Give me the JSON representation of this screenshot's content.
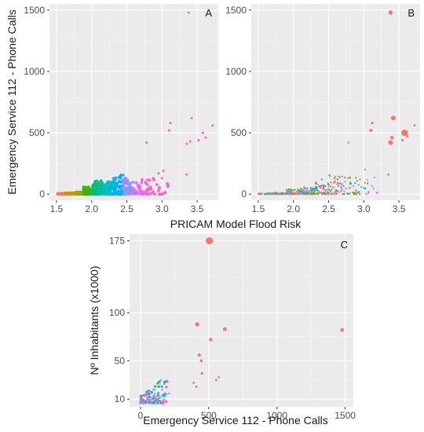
{
  "chart_data": [
    {
      "id": "A",
      "type": "scatter",
      "panel_label": "A",
      "xlabel": "PRICAM Model Flood Risk",
      "ylabel": "Emergency Service 112 - Phone Calls",
      "xlim": [
        1.4,
        3.8
      ],
      "ylim": [
        -50,
        1550
      ],
      "xticks": [
        1.5,
        2.0,
        2.5,
        3.0,
        3.5
      ],
      "xtick_labels": [
        "1.5",
        "2.0",
        "2.5",
        "3.0",
        "3.5"
      ],
      "yticks": [
        0,
        500,
        1000,
        1500
      ],
      "ytick_labels": [
        "0",
        "500",
        "1000",
        "1500"
      ],
      "grid": true,
      "colors": [
        "#F8766D",
        "#D89000",
        "#A3A500",
        "#39B600",
        "#00BF7D",
        "#00BFC4",
        "#00B0F6",
        "#9590FF",
        "#E76BF3",
        "#FF62BC"
      ],
      "bands": [
        {
          "xmin": 1.5,
          "xmax": 1.62,
          "ymax": 8,
          "n": 25
        },
        {
          "xmin": 1.62,
          "xmax": 1.75,
          "ymax": 12,
          "n": 40
        },
        {
          "xmin": 1.75,
          "xmax": 1.88,
          "ymax": 18,
          "n": 60
        },
        {
          "xmin": 1.88,
          "xmax": 2.0,
          "ymax": 60,
          "n": 80
        },
        {
          "xmin": 2.0,
          "xmax": 2.15,
          "ymax": 110,
          "n": 90
        },
        {
          "xmin": 2.15,
          "xmax": 2.3,
          "ymax": 110,
          "n": 90
        },
        {
          "xmin": 2.3,
          "xmax": 2.45,
          "ymax": 170,
          "n": 80
        },
        {
          "xmin": 2.45,
          "xmax": 2.6,
          "ymax": 140,
          "n": 60
        },
        {
          "xmin": 2.6,
          "xmax": 2.8,
          "ymax": 130,
          "n": 45
        },
        {
          "xmin": 2.8,
          "xmax": 3.1,
          "ymax": 140,
          "n": 25
        }
      ],
      "points": [
        {
          "x": 3.38,
          "y": 1480,
          "c": 9
        },
        {
          "x": 3.42,
          "y": 620,
          "c": 9
        },
        {
          "x": 3.12,
          "y": 580,
          "c": 9
        },
        {
          "x": 3.1,
          "y": 520,
          "c": 9
        },
        {
          "x": 3.58,
          "y": 500,
          "c": 9
        },
        {
          "x": 3.72,
          "y": 560,
          "c": 9
        },
        {
          "x": 3.62,
          "y": 460,
          "c": 9
        },
        {
          "x": 3.4,
          "y": 430,
          "c": 9
        },
        {
          "x": 3.35,
          "y": 410,
          "c": 9
        },
        {
          "x": 3.52,
          "y": 440,
          "c": 9
        },
        {
          "x": 2.78,
          "y": 420,
          "c": 9
        },
        {
          "x": 3.35,
          "y": 160,
          "c": 9
        },
        {
          "x": 3.02,
          "y": 190,
          "c": 9
        },
        {
          "x": 2.95,
          "y": 170,
          "c": 9
        },
        {
          "x": 3.0,
          "y": 130,
          "c": 9
        }
      ]
    },
    {
      "id": "B",
      "type": "scatter",
      "panel_label": "B",
      "xlim": [
        1.4,
        3.8
      ],
      "ylim": [
        -50,
        1550
      ],
      "xticks": [
        1.5,
        2.0,
        2.5,
        3.0,
        3.5
      ],
      "xtick_labels": [
        "1.5",
        "2.0",
        "2.5",
        "3.0",
        "3.5"
      ],
      "yticks": [
        0,
        500,
        1000,
        1500
      ],
      "ytick_labels": [
        "0",
        "500",
        "1000",
        "1500"
      ],
      "grid": true,
      "colors": [
        "#F8766D",
        "#D89000",
        "#A3A500",
        "#39B600",
        "#00BF7D",
        "#00BFC4",
        "#00B0F6",
        "#9590FF",
        "#E76BF3",
        "#FF62BC"
      ],
      "bands": [
        {
          "xmin": 1.5,
          "xmax": 1.7,
          "ymax": 8,
          "n": 40
        },
        {
          "xmin": 1.7,
          "xmax": 1.9,
          "ymax": 14,
          "n": 60
        },
        {
          "xmin": 1.9,
          "xmax": 2.1,
          "ymax": 40,
          "n": 80
        },
        {
          "xmin": 2.1,
          "xmax": 2.3,
          "ymax": 60,
          "n": 80
        },
        {
          "xmin": 2.3,
          "xmax": 2.5,
          "ymax": 120,
          "n": 70
        },
        {
          "xmin": 2.5,
          "xmax": 2.7,
          "ymax": 160,
          "n": 50
        },
        {
          "xmin": 2.7,
          "xmax": 2.9,
          "ymax": 140,
          "n": 35
        },
        {
          "xmin": 2.9,
          "xmax": 3.2,
          "ymax": 150,
          "n": 20
        }
      ],
      "points": [
        {
          "x": 3.38,
          "y": 1480,
          "s": 2.8,
          "c": 0
        },
        {
          "x": 3.42,
          "y": 620,
          "s": 3.0,
          "c": 0
        },
        {
          "x": 3.58,
          "y": 500,
          "s": 4.2,
          "c": 0
        },
        {
          "x": 3.1,
          "y": 520,
          "s": 2.0,
          "c": 0
        },
        {
          "x": 3.12,
          "y": 580,
          "s": 1.6,
          "c": 0
        },
        {
          "x": 3.38,
          "y": 420,
          "s": 3.0,
          "c": 0
        },
        {
          "x": 3.4,
          "y": 460,
          "s": 2.2,
          "c": 0
        },
        {
          "x": 3.55,
          "y": 440,
          "s": 1.6,
          "c": 0
        },
        {
          "x": 3.62,
          "y": 470,
          "s": 1.6,
          "c": 0
        },
        {
          "x": 3.72,
          "y": 560,
          "s": 1.4,
          "c": 9
        },
        {
          "x": 2.78,
          "y": 420,
          "s": 1.2,
          "c": 9
        },
        {
          "x": 3.35,
          "y": 160,
          "s": 1.4,
          "c": 0
        },
        {
          "x": 3.02,
          "y": 200,
          "s": 1.2,
          "c": 9
        }
      ]
    },
    {
      "id": "C",
      "type": "scatter",
      "panel_label": "C",
      "xlabel": "Emergency Service 112 - Phone Calls",
      "ylabel": "Nº Inhabitants (x1000)",
      "xlim": [
        -80,
        1560
      ],
      "ylim": [
        2,
        182
      ],
      "xticks": [
        0,
        500,
        1000,
        1500
      ],
      "xtick_labels": [
        "0",
        "500",
        "1000",
        "1500"
      ],
      "yticks": [
        10,
        50,
        100,
        175
      ],
      "ytick_labels": [
        "10",
        "50",
        "100",
        "175"
      ],
      "grid": true,
      "colors": [
        "#F8766D",
        "#D89000",
        "#A3A500",
        "#39B600",
        "#00BF7D",
        "#00BFC4",
        "#00B0F6",
        "#9590FF",
        "#E76BF3",
        "#FF62BC"
      ],
      "cluster": {
        "xmax": 200,
        "ymin": 6,
        "ymax": 30,
        "n": 140
      },
      "points": [
        {
          "x": 505,
          "y": 175,
          "s": 4.5,
          "c": 0
        },
        {
          "x": 415,
          "y": 88,
          "s": 2.6,
          "c": 0
        },
        {
          "x": 618,
          "y": 83,
          "s": 2.4,
          "c": 0
        },
        {
          "x": 1478,
          "y": 82,
          "s": 2.4,
          "c": 0
        },
        {
          "x": 515,
          "y": 72,
          "s": 2.2,
          "c": 0
        },
        {
          "x": 430,
          "y": 56,
          "s": 2.0,
          "c": 0
        },
        {
          "x": 445,
          "y": 50,
          "s": 1.8,
          "c": 0
        },
        {
          "x": 450,
          "y": 37,
          "s": 1.6,
          "c": 0
        },
        {
          "x": 575,
          "y": 33,
          "s": 1.4,
          "c": 0
        },
        {
          "x": 555,
          "y": 30,
          "s": 1.4,
          "c": 0
        },
        {
          "x": 390,
          "y": 27,
          "s": 1.4,
          "c": 0
        },
        {
          "x": 410,
          "y": 23,
          "s": 1.4,
          "c": 0
        },
        {
          "x": 150,
          "y": 30,
          "s": 1.2,
          "c": 9
        },
        {
          "x": 175,
          "y": 26,
          "s": 1.2,
          "c": 9
        },
        {
          "x": 210,
          "y": 16,
          "s": 1.2,
          "c": 9
        },
        {
          "x": 160,
          "y": 20,
          "s": 1.2,
          "c": 8
        }
      ]
    }
  ]
}
